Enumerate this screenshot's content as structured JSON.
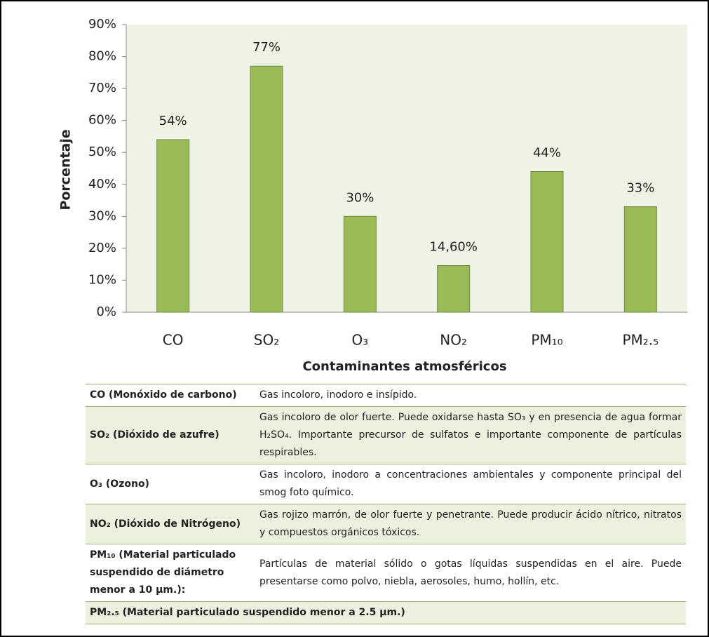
{
  "chart_data": {
    "type": "bar",
    "categories": [
      "CO",
      "SO₂",
      "O₃",
      "NO₂",
      "PM₁₀",
      "PM₂.₅"
    ],
    "values": [
      54,
      77,
      30,
      14.6,
      44,
      33
    ],
    "value_labels": [
      "54%",
      "77%",
      "30%",
      "14,60%",
      "44%",
      "33%"
    ],
    "color": "#9bbb59",
    "ylim": [
      0,
      90
    ],
    "yticks": [
      {
        "value": 0,
        "label": "0%"
      },
      {
        "value": 10,
        "label": "10%"
      },
      {
        "value": 20,
        "label": "20%"
      },
      {
        "value": 30,
        "label": "30%"
      },
      {
        "value": 40,
        "label": "40%"
      },
      {
        "value": 50,
        "label": "50%"
      },
      {
        "value": 60,
        "label": "60%"
      },
      {
        "value": 70,
        "label": "70%"
      },
      {
        "value": 80,
        "label": "80%"
      },
      {
        "value": 90,
        "label": "90%"
      }
    ],
    "y_label": "Porcentaje",
    "x_label": "Contaminantes atmosféricos",
    "grid": false
  },
  "table": {
    "rows": [
      [
        "CO (Monóxido de carbono)",
        "Gas incoloro, inodoro e insípido."
      ],
      [
        "SO₂ (Dióxido de azufre)",
        "Gas incoloro de olor fuerte. Puede oxidarse hasta SO₃ y en presencia de agua formar H₂SO₄. Importante precursor de sulfatos e importante componente de partículas respirables."
      ],
      [
        "O₃ (Ozono)",
        "Gas incoloro, inodoro a concentraciones ambientales y componente principal del smog foto químico."
      ],
      [
        "NO₂ (Dióxido de Nitrógeno)",
        "Gas rojizo marrón, de olor fuerte y penetrante. Puede producir ácido nítrico, nitratos y compuestos orgánicos tóxicos."
      ],
      [
        "PM₁₀ (Material particulado suspendido de diámetro menor a 10 µm.):",
        "Partículas de material sólido o gotas líquidas suspendidas en el aire. Puede presentarse como polvo, niebla, aerosoles, humo, hollín, etc."
      ],
      [
        "PM₂.₅ (Material particulado suspendido menor a 2.5 µm.)"
      ]
    ]
  }
}
